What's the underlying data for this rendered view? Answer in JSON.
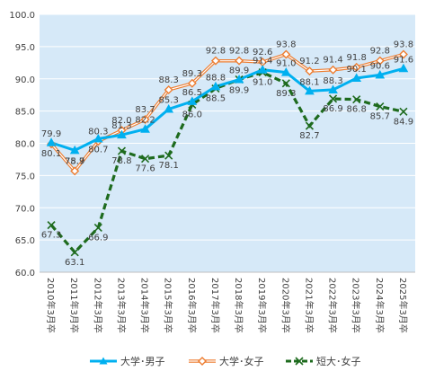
{
  "chart_data": {
    "type": "line",
    "title": "",
    "xlabel": "",
    "ylabel": "",
    "ylim": [
      60,
      100
    ],
    "yticks": [
      "60.0",
      "65.0",
      "70.0",
      "75.0",
      "80.0",
      "85.0",
      "90.0",
      "95.0",
      "100.0"
    ],
    "grid": "horizontal",
    "legend_position": "bottom",
    "background_color": "#d6e9f8",
    "categories": [
      "2010年3月卒",
      "2011年3月卒",
      "2012年3月卒",
      "2013年3月卒",
      "2014年3月卒",
      "2015年3月卒",
      "2016年3月卒",
      "2017年3月卒",
      "2018年3月卒",
      "2019年3月卒",
      "2020年3月卒",
      "2021年3月卒",
      "2022年3月卒",
      "2023年3月卒",
      "2024年3月卒",
      "2025年3月卒"
    ],
    "series": [
      {
        "name": "大学･男子",
        "color": "#00b0f0",
        "marker": "triangle",
        "line_style": "solid",
        "values": [
          80.1,
          78.9,
          80.7,
          81.3,
          82.2,
          85.3,
          86.5,
          88.8,
          89.9,
          91.4,
          91.0,
          88.1,
          88.3,
          90.1,
          90.6,
          91.6
        ],
        "labels": [
          "80.1",
          "78.9",
          "80.7",
          "81.3",
          "82.2",
          "85.3",
          "86.5",
          "88.8",
          "89.9",
          "91.4",
          "91.0",
          "88.1",
          "88.3",
          "90.1",
          "90.6",
          "91.6"
        ]
      },
      {
        "name": "大学･女子",
        "color": "#ed7d31",
        "marker": "diamond",
        "line_style": "double",
        "values": [
          79.9,
          75.7,
          80.3,
          82.0,
          83.7,
          88.3,
          89.3,
          92.8,
          92.8,
          92.6,
          93.8,
          91.2,
          91.4,
          91.8,
          92.8,
          93.8
        ],
        "labels": [
          "79.9",
          "75.7",
          "80.3",
          "82.0",
          "83.7",
          "88.3",
          "89.3",
          "92.8",
          "92.8",
          "92.6",
          "93.8",
          "91.2",
          "91.4",
          "91.8",
          "92.8",
          "93.8"
        ]
      },
      {
        "name": "短大･女子",
        "color": "#1e6b1e",
        "marker": "cross",
        "line_style": "dashed",
        "values": [
          67.3,
          63.1,
          66.9,
          78.8,
          77.6,
          78.1,
          86.0,
          88.5,
          89.9,
          91.0,
          89.3,
          82.7,
          86.9,
          86.8,
          85.7,
          84.9
        ],
        "labels": [
          "67.3",
          "63.1",
          "66.9",
          "78.8",
          "77.6",
          "78.1",
          "86.0",
          "88.5",
          "89.9",
          "91.0",
          "89.3",
          "82.7",
          "86.9",
          "86.8",
          "85.7",
          "84.9"
        ]
      }
    ]
  }
}
